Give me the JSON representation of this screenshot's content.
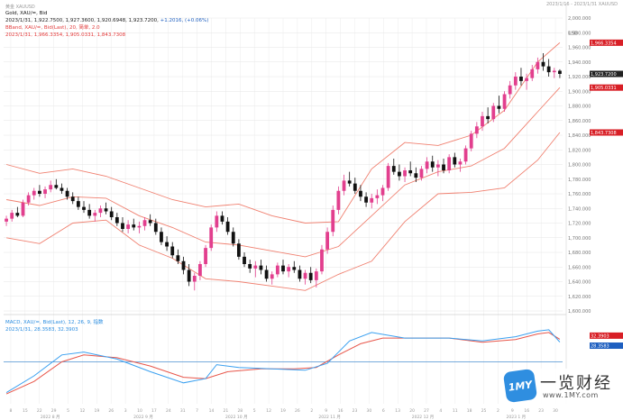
{
  "header": {
    "left_tag": "黄金 XAUUSD",
    "right_tag": "2023/1/16 - 2023/1/31 XAUUSD"
  },
  "legend_main": {
    "line1": "Gold, XAU/=, Bid",
    "line2_prefix": "2023/1/31, 1,922.7500, 1,927.3600, 1,920.6948, 1,923.7200,",
    "line2_change": "+1.2016, (+0.06%)",
    "line3": "BBand, XAU/=, Bid(Last), 20, 简单, 2.0",
    "line4": "2023/1/31, 1,966.3354, 1,905.0331, 1,843.7308"
  },
  "legend_macd": {
    "line1": "MACD, XAU/=, Bid(Last), 12, 26, 9, 指数",
    "line2": "2023/1/31, 28.3583, 32.3903"
  },
  "watermark": {
    "logo": "1MY",
    "title": "一览财经",
    "url": "www.1MY.com"
  },
  "colors": {
    "bull": "#e23f8e",
    "bear": "#111111",
    "band": "#f08070",
    "macd": "#3aa0f0",
    "signal": "#e8564a",
    "zero": "#4a8fd0",
    "grid": "#e6e6e6",
    "tag_red": "#d81f26",
    "tag_dark": "#222222",
    "tag_blue": "#1e5fc0"
  },
  "chart_data": {
    "type": "candlestick",
    "title": "",
    "y_axis_label": "USD",
    "ylim": [
      1600,
      2000
    ],
    "y_ticks": [
      1600,
      1620,
      1640,
      1660,
      1680,
      1700,
      1720,
      1740,
      1760,
      1780,
      1800,
      1820,
      1840,
      1860,
      1880,
      1900,
      1920,
      1940,
      1960,
      1980,
      2000
    ],
    "x_ticks": [
      "8",
      "15",
      "22",
      "29",
      "5",
      "12",
      "19",
      "26",
      "3",
      "10",
      "17",
      "24",
      "31",
      "7",
      "14",
      "21",
      "28",
      "5",
      "12",
      "19",
      "26",
      "2",
      "9",
      "16",
      "23",
      "30",
      "6",
      "13",
      "20",
      "27",
      "4",
      "11",
      "18",
      "25",
      "2",
      "9",
      "16",
      "23",
      "30"
    ],
    "x_ticks_note": "x tick labels are low-contrast in the image; values transcribed approximately",
    "x_month_labels": [
      "2022 8 月",
      "2022 9 月",
      "2022 10 月",
      "2022 11 月",
      "2022 12 月",
      "2023 1 月"
    ],
    "value_tags": [
      {
        "label": "1,966.3354",
        "value": 1966.3,
        "color": "tag_red"
      },
      {
        "label": "1,923.7200",
        "value": 1923.7,
        "color": "tag_dark"
      },
      {
        "label": "1,905.0331",
        "value": 1905.0,
        "color": "tag_red"
      },
      {
        "label": "1,843.7308",
        "value": 1843.7,
        "color": "tag_red"
      }
    ],
    "candles": [
      [
        1722,
        1730,
        1716,
        1726
      ],
      [
        1726,
        1738,
        1722,
        1734
      ],
      [
        1734,
        1742,
        1728,
        1730
      ],
      [
        1730,
        1752,
        1728,
        1748
      ],
      [
        1748,
        1762,
        1744,
        1758
      ],
      [
        1758,
        1768,
        1752,
        1764
      ],
      [
        1764,
        1772,
        1756,
        1760
      ],
      [
        1760,
        1770,
        1754,
        1766
      ],
      [
        1766,
        1778,
        1762,
        1772
      ],
      [
        1772,
        1780,
        1766,
        1768
      ],
      [
        1768,
        1774,
        1760,
        1764
      ],
      [
        1764,
        1768,
        1752,
        1756
      ],
      [
        1756,
        1762,
        1746,
        1750
      ],
      [
        1750,
        1756,
        1738,
        1742
      ],
      [
        1742,
        1750,
        1734,
        1738
      ],
      [
        1738,
        1746,
        1726,
        1730
      ],
      [
        1730,
        1738,
        1722,
        1734
      ],
      [
        1734,
        1744,
        1728,
        1740
      ],
      [
        1740,
        1748,
        1732,
        1736
      ],
      [
        1736,
        1742,
        1724,
        1728
      ],
      [
        1728,
        1734,
        1716,
        1720
      ],
      [
        1720,
        1728,
        1708,
        1712
      ],
      [
        1712,
        1724,
        1706,
        1718
      ],
      [
        1718,
        1726,
        1710,
        1714
      ],
      [
        1714,
        1722,
        1706,
        1716
      ],
      [
        1716,
        1728,
        1710,
        1724
      ],
      [
        1724,
        1732,
        1716,
        1720
      ],
      [
        1720,
        1726,
        1704,
        1708
      ],
      [
        1708,
        1714,
        1690,
        1694
      ],
      [
        1694,
        1702,
        1682,
        1688
      ],
      [
        1688,
        1694,
        1672,
        1676
      ],
      [
        1676,
        1684,
        1664,
        1668
      ],
      [
        1668,
        1674,
        1650,
        1656
      ],
      [
        1656,
        1664,
        1634,
        1640
      ],
      [
        1640,
        1652,
        1628,
        1648
      ],
      [
        1648,
        1668,
        1642,
        1664
      ],
      [
        1664,
        1690,
        1660,
        1686
      ],
      [
        1686,
        1718,
        1682,
        1714
      ],
      [
        1714,
        1736,
        1708,
        1730
      ],
      [
        1730,
        1736,
        1718,
        1722
      ],
      [
        1722,
        1728,
        1704,
        1708
      ],
      [
        1708,
        1714,
        1688,
        1692
      ],
      [
        1692,
        1698,
        1670,
        1674
      ],
      [
        1674,
        1680,
        1660,
        1664
      ],
      [
        1664,
        1670,
        1652,
        1658
      ],
      [
        1658,
        1668,
        1646,
        1662
      ],
      [
        1662,
        1670,
        1650,
        1656
      ],
      [
        1656,
        1662,
        1640,
        1644
      ],
      [
        1644,
        1654,
        1636,
        1650
      ],
      [
        1650,
        1666,
        1646,
        1662
      ],
      [
        1662,
        1670,
        1650,
        1654
      ],
      [
        1654,
        1664,
        1646,
        1660
      ],
      [
        1660,
        1668,
        1652,
        1656
      ],
      [
        1656,
        1662,
        1640,
        1644
      ],
      [
        1644,
        1656,
        1636,
        1652
      ],
      [
        1652,
        1660,
        1638,
        1642
      ],
      [
        1642,
        1658,
        1632,
        1654
      ],
      [
        1654,
        1690,
        1650,
        1684
      ],
      [
        1684,
        1714,
        1678,
        1708
      ],
      [
        1708,
        1744,
        1702,
        1738
      ],
      [
        1738,
        1770,
        1732,
        1764
      ],
      [
        1764,
        1786,
        1758,
        1778
      ],
      [
        1778,
        1790,
        1770,
        1774
      ],
      [
        1774,
        1782,
        1760,
        1764
      ],
      [
        1764,
        1772,
        1750,
        1756
      ],
      [
        1756,
        1762,
        1742,
        1748
      ],
      [
        1748,
        1760,
        1740,
        1754
      ],
      [
        1754,
        1766,
        1746,
        1758
      ],
      [
        1758,
        1772,
        1750,
        1768
      ],
      [
        1768,
        1802,
        1764,
        1798
      ],
      [
        1798,
        1808,
        1786,
        1790
      ],
      [
        1790,
        1800,
        1778,
        1784
      ],
      [
        1784,
        1796,
        1776,
        1792
      ],
      [
        1792,
        1804,
        1784,
        1788
      ],
      [
        1788,
        1796,
        1776,
        1782
      ],
      [
        1782,
        1798,
        1778,
        1794
      ],
      [
        1794,
        1810,
        1788,
        1804
      ],
      [
        1804,
        1812,
        1790,
        1796
      ],
      [
        1796,
        1806,
        1784,
        1800
      ],
      [
        1800,
        1808,
        1788,
        1792
      ],
      [
        1792,
        1814,
        1788,
        1810
      ],
      [
        1810,
        1816,
        1796,
        1800
      ],
      [
        1800,
        1808,
        1790,
        1804
      ],
      [
        1804,
        1826,
        1800,
        1822
      ],
      [
        1822,
        1846,
        1818,
        1842
      ],
      [
        1842,
        1858,
        1836,
        1852
      ],
      [
        1852,
        1872,
        1846,
        1866
      ],
      [
        1866,
        1878,
        1856,
        1862
      ],
      [
        1862,
        1884,
        1858,
        1880
      ],
      [
        1880,
        1894,
        1870,
        1876
      ],
      [
        1876,
        1900,
        1872,
        1896
      ],
      [
        1896,
        1914,
        1890,
        1908
      ],
      [
        1908,
        1926,
        1902,
        1920
      ],
      [
        1920,
        1932,
        1908,
        1914
      ],
      [
        1914,
        1924,
        1902,
        1918
      ],
      [
        1918,
        1936,
        1914,
        1930
      ],
      [
        1930,
        1946,
        1924,
        1940
      ],
      [
        1940,
        1952,
        1928,
        1934
      ],
      [
        1934,
        1944,
        1920,
        1926
      ],
      [
        1926,
        1932,
        1918,
        1928
      ],
      [
        1928,
        1930,
        1918,
        1923.72
      ]
    ],
    "bollinger": {
      "period": 20,
      "stdev": 2.0,
      "upper": [
        [
          0,
          1800
        ],
        [
          6,
          1788
        ],
        [
          12,
          1794
        ],
        [
          18,
          1784
        ],
        [
          24,
          1768
        ],
        [
          30,
          1752
        ],
        [
          36,
          1742
        ],
        [
          42,
          1746
        ],
        [
          48,
          1730
        ],
        [
          54,
          1720
        ],
        [
          60,
          1722
        ],
        [
          66,
          1794
        ],
        [
          72,
          1830
        ],
        [
          78,
          1826
        ],
        [
          84,
          1840
        ],
        [
          90,
          1874
        ],
        [
          96,
          1940
        ],
        [
          100,
          1966.3
        ]
      ],
      "middle": [
        [
          0,
          1752
        ],
        [
          6,
          1744
        ],
        [
          12,
          1756
        ],
        [
          18,
          1754
        ],
        [
          24,
          1730
        ],
        [
          30,
          1714
        ],
        [
          36,
          1694
        ],
        [
          42,
          1690
        ],
        [
          48,
          1682
        ],
        [
          54,
          1674
        ],
        [
          60,
          1688
        ],
        [
          66,
          1730
        ],
        [
          72,
          1772
        ],
        [
          78,
          1790
        ],
        [
          84,
          1798
        ],
        [
          90,
          1822
        ],
        [
          96,
          1872
        ],
        [
          100,
          1905.0
        ]
      ],
      "lower": [
        [
          0,
          1700
        ],
        [
          6,
          1692
        ],
        [
          12,
          1720
        ],
        [
          18,
          1724
        ],
        [
          24,
          1690
        ],
        [
          30,
          1672
        ],
        [
          36,
          1644
        ],
        [
          42,
          1640
        ],
        [
          48,
          1634
        ],
        [
          54,
          1628
        ],
        [
          60,
          1650
        ],
        [
          66,
          1668
        ],
        [
          72,
          1722
        ],
        [
          78,
          1760
        ],
        [
          84,
          1762
        ],
        [
          90,
          1768
        ],
        [
          96,
          1806
        ],
        [
          100,
          1843.7
        ]
      ]
    },
    "macd_panel": {
      "zero": 0,
      "ylim": [
        -60,
        60
      ],
      "macd": [
        [
          0,
          -44
        ],
        [
          5,
          -20
        ],
        [
          10,
          10
        ],
        [
          14,
          14
        ],
        [
          20,
          4
        ],
        [
          26,
          -14
        ],
        [
          32,
          -30
        ],
        [
          36,
          -24
        ],
        [
          38,
          -4
        ],
        [
          42,
          -8
        ],
        [
          48,
          -10
        ],
        [
          54,
          -12
        ],
        [
          58,
          -2
        ],
        [
          62,
          30
        ],
        [
          66,
          42
        ],
        [
          72,
          34
        ],
        [
          80,
          34
        ],
        [
          86,
          30
        ],
        [
          92,
          36
        ],
        [
          96,
          44
        ],
        [
          98,
          46
        ],
        [
          100,
          28.36
        ]
      ],
      "signal": [
        [
          0,
          -46
        ],
        [
          5,
          -28
        ],
        [
          10,
          0
        ],
        [
          14,
          10
        ],
        [
          20,
          6
        ],
        [
          26,
          -6
        ],
        [
          32,
          -22
        ],
        [
          36,
          -24
        ],
        [
          40,
          -14
        ],
        [
          46,
          -10
        ],
        [
          52,
          -10
        ],
        [
          56,
          -8
        ],
        [
          60,
          10
        ],
        [
          64,
          26
        ],
        [
          68,
          34
        ],
        [
          74,
          34
        ],
        [
          80,
          34
        ],
        [
          86,
          28
        ],
        [
          92,
          32
        ],
        [
          96,
          40
        ],
        [
          98,
          42
        ],
        [
          100,
          32.39
        ]
      ],
      "tags": [
        {
          "label": "32.3903",
          "value": 32.39,
          "color": "tag_red"
        },
        {
          "label": "28.3583",
          "value": 28.36,
          "color": "tag_blue"
        }
      ]
    }
  }
}
